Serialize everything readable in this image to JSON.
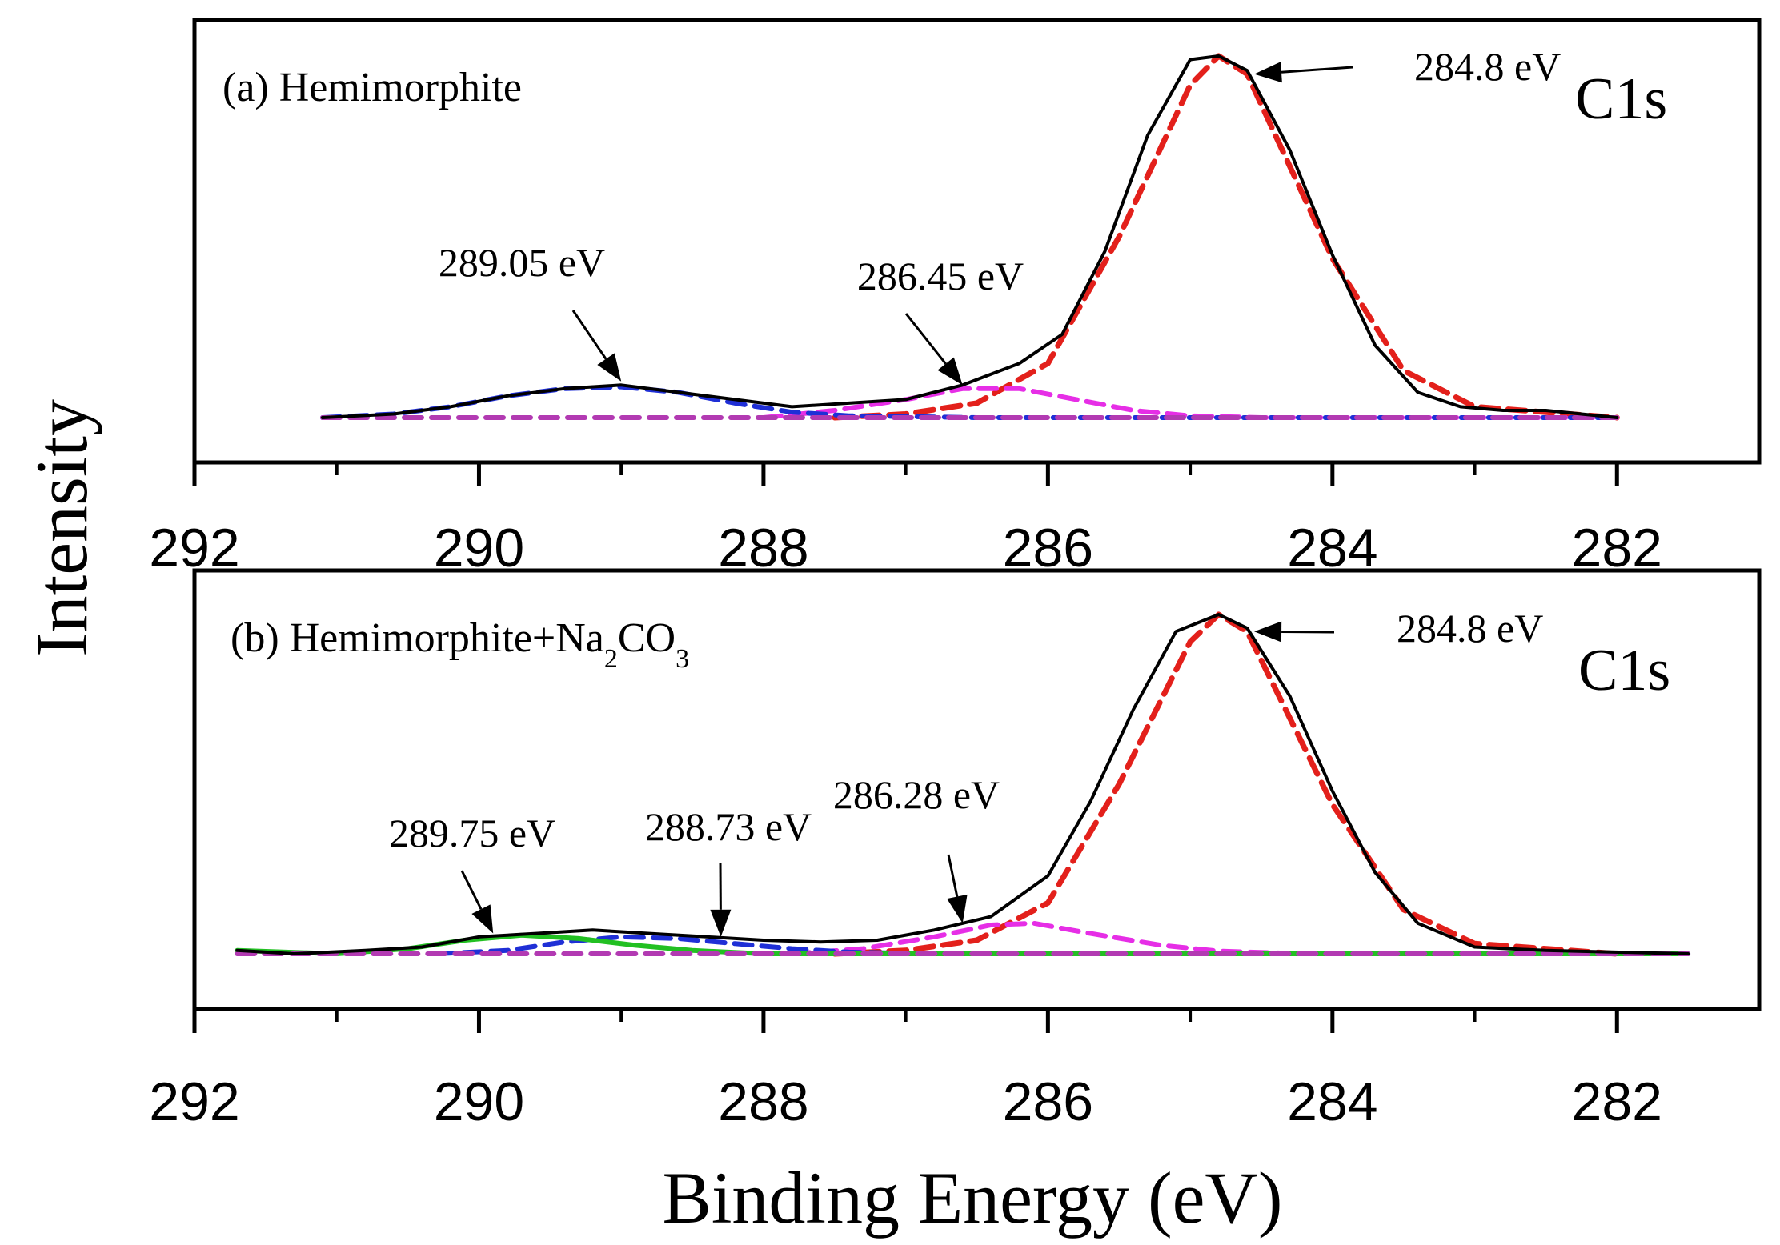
{
  "figure": {
    "ylabel": "Intensity",
    "xlabel": "Binding Energy (eV)"
  },
  "chart_data": [
    {
      "type": "line",
      "panel": "a",
      "title": "(a) Hemimorphite",
      "orbital": "C1s",
      "x_ticks": [
        292,
        290,
        288,
        286,
        284,
        282
      ],
      "x_tick_labels": [
        "292",
        "290",
        "288",
        "286",
        "284",
        "282"
      ],
      "xlim": [
        292,
        281
      ],
      "ylim": [
        0,
        1.15
      ],
      "x_reversed": true,
      "series": [
        {
          "key": "envelope",
          "color": "#000000",
          "style": "solid",
          "x": [
            291.1,
            290.6,
            290.2,
            289.8,
            289.4,
            289.0,
            288.6,
            288.2,
            287.8,
            287.4,
            287.0,
            286.6,
            286.2,
            285.9,
            285.6,
            285.3,
            285.0,
            284.8,
            284.6,
            284.3,
            284.0,
            283.7,
            283.4,
            283.1,
            282.8,
            282.5,
            282.0
          ],
          "y": [
            0.0,
            0.01,
            0.03,
            0.06,
            0.08,
            0.09,
            0.07,
            0.05,
            0.03,
            0.04,
            0.05,
            0.09,
            0.15,
            0.23,
            0.46,
            0.78,
            0.99,
            1.0,
            0.96,
            0.74,
            0.45,
            0.2,
            0.07,
            0.03,
            0.02,
            0.02,
            0.0
          ]
        },
        {
          "key": "peak-284.8",
          "color": "#e3201b",
          "style": "dashed",
          "x": [
            287.5,
            287.0,
            286.5,
            286.0,
            285.5,
            285.0,
            284.8,
            284.6,
            284.0,
            283.5,
            283.0,
            282.0
          ],
          "y": [
            0.0,
            0.01,
            0.04,
            0.15,
            0.5,
            0.92,
            1.0,
            0.95,
            0.44,
            0.13,
            0.03,
            0.0
          ]
        },
        {
          "key": "peak-286.45",
          "color": "#e62ee6",
          "style": "dashed",
          "x": [
            288.0,
            287.5,
            287.0,
            286.6,
            286.2,
            285.8,
            285.4,
            285.0,
            284.5,
            282.0
          ],
          "y": [
            0.0,
            0.02,
            0.05,
            0.08,
            0.08,
            0.05,
            0.02,
            0.005,
            0.0,
            0.0
          ]
        },
        {
          "key": "peak-289.05",
          "color": "#1f2fd6",
          "style": "dashed",
          "x": [
            291.1,
            290.6,
            290.2,
            289.8,
            289.4,
            289.0,
            288.6,
            288.2,
            287.8,
            287.4,
            286.5,
            282.0
          ],
          "y": [
            0.0,
            0.01,
            0.03,
            0.06,
            0.08,
            0.085,
            0.07,
            0.04,
            0.015,
            0.005,
            0.0,
            0.0
          ]
        },
        {
          "key": "baseline",
          "color": "#b23ab2",
          "style": "dashed",
          "x": [
            291.1,
            282.0
          ],
          "y": [
            0.0,
            0.0
          ]
        }
      ],
      "annotations": [
        {
          "text": "284.8 eV",
          "x": 284.55,
          "y": 0.95
        },
        {
          "text": "286.45 eV",
          "x": 286.6,
          "y": 0.09
        },
        {
          "text": "289.05 eV",
          "x": 289.0,
          "y": 0.1
        }
      ]
    },
    {
      "type": "line",
      "panel": "b",
      "title": "(b) Hemimorphite+Na",
      "title_sub1": "2",
      "title_mid": "CO",
      "title_sub2": "3",
      "orbital": "C1s",
      "x_ticks": [
        292,
        290,
        288,
        286,
        284,
        282
      ],
      "x_tick_labels": [
        "292",
        "290",
        "288",
        "286",
        "284",
        "282"
      ],
      "xlim": [
        292,
        281
      ],
      "ylim": [
        0,
        1.15
      ],
      "x_reversed": true,
      "series": [
        {
          "key": "envelope",
          "color": "#000000",
          "style": "solid",
          "x": [
            291.7,
            291.3,
            290.8,
            290.4,
            290.0,
            289.6,
            289.2,
            288.8,
            288.4,
            288.0,
            287.6,
            287.2,
            286.8,
            286.4,
            286.0,
            285.7,
            285.4,
            285.1,
            284.8,
            284.6,
            284.3,
            284.0,
            283.7,
            283.4,
            283.0,
            282.5,
            281.5
          ],
          "y": [
            0.01,
            0.0,
            0.01,
            0.02,
            0.05,
            0.06,
            0.07,
            0.06,
            0.05,
            0.04,
            0.035,
            0.04,
            0.07,
            0.11,
            0.23,
            0.45,
            0.72,
            0.95,
            1.0,
            0.96,
            0.76,
            0.48,
            0.24,
            0.09,
            0.02,
            0.01,
            0.0
          ]
        },
        {
          "key": "peak-284.8",
          "color": "#e3201b",
          "style": "dashed",
          "x": [
            287.5,
            287.0,
            286.5,
            286.0,
            285.5,
            285.0,
            284.8,
            284.6,
            284.0,
            283.5,
            283.0,
            282.0
          ],
          "y": [
            0.0,
            0.01,
            0.04,
            0.15,
            0.5,
            0.92,
            1.0,
            0.95,
            0.44,
            0.13,
            0.03,
            0.0
          ]
        },
        {
          "key": "peak-286.28",
          "color": "#e62ee6",
          "style": "dashed",
          "x": [
            287.8,
            287.3,
            286.8,
            286.4,
            286.1,
            285.7,
            285.2,
            284.8,
            284.2,
            281.5
          ],
          "y": [
            0.0,
            0.015,
            0.05,
            0.085,
            0.09,
            0.06,
            0.025,
            0.008,
            0.0,
            0.0
          ]
        },
        {
          "key": "peak-288.73",
          "color": "#1f2fd6",
          "style": "dashed",
          "x": [
            290.3,
            289.8,
            289.4,
            289.0,
            288.6,
            288.2,
            287.8,
            287.4,
            286.8,
            281.5
          ],
          "y": [
            0.0,
            0.01,
            0.035,
            0.05,
            0.045,
            0.03,
            0.015,
            0.005,
            0.0,
            0.0
          ]
        },
        {
          "key": "peak-289.75",
          "color": "#22c022",
          "style": "solid",
          "x": [
            291.7,
            291.0,
            290.5,
            290.1,
            289.7,
            289.3,
            288.9,
            288.5,
            288.0,
            281.5
          ],
          "y": [
            0.01,
            0.0,
            0.015,
            0.04,
            0.055,
            0.045,
            0.025,
            0.01,
            0.0,
            0.0
          ]
        },
        {
          "key": "baseline",
          "color": "#b23ab2",
          "style": "dashed",
          "x": [
            291.7,
            281.5
          ],
          "y": [
            0.0,
            0.0
          ]
        }
      ],
      "annotations": [
        {
          "text": "284.8 eV",
          "x": 284.55,
          "y": 0.95
        },
        {
          "text": "286.28 eV",
          "x": 286.6,
          "y": 0.09
        },
        {
          "text": "288.73 eV",
          "x": 288.3,
          "y": 0.05
        },
        {
          "text": "289.75 eV",
          "x": 289.9,
          "y": 0.06
        }
      ]
    }
  ]
}
